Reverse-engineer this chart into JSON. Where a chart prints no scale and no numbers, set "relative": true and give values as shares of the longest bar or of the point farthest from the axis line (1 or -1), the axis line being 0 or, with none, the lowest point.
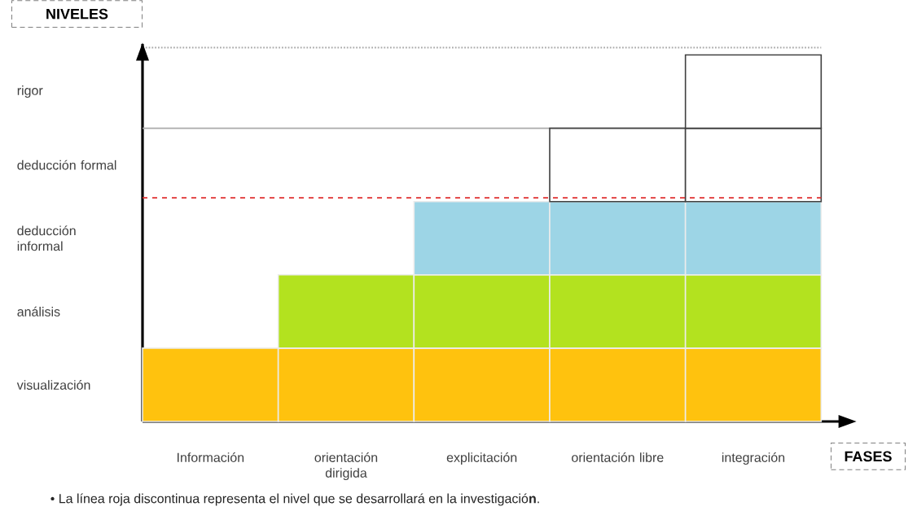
{
  "chart_data": {
    "type": "bar",
    "stacked": true,
    "relative": true,
    "grid": false,
    "xlabel": "FASES",
    "ylabel": "NIVELES",
    "categories": [
      "Información",
      "orientación dirigida",
      "explicitación",
      "orientación libre",
      "integración"
    ],
    "series": [
      {
        "color": "#ffc20e",
        "values": [
          0.2,
          0.2,
          0.2,
          0.2,
          0.2
        ]
      },
      {
        "color": "#b3e21f",
        "values": [
          null,
          0.2,
          0.2,
          0.2,
          0.2
        ]
      },
      {
        "color": "#9dd5e6",
        "values": [
          null,
          null,
          0.2,
          0.2,
          0.2
        ]
      },
      {
        "color": "#ffffff",
        "values": [
          null,
          null,
          null,
          0.2,
          0.2
        ]
      },
      {
        "color": "#ffffff",
        "values": [
          null,
          null,
          null,
          null,
          0.2
        ]
      }
    ],
    "ref_lines": [
      {
        "axis": "y",
        "value": 1.02,
        "color": "#aaaaaa",
        "line_style": "dotted"
      },
      {
        "axis": "y",
        "value": 0.8,
        "color": "#aaaaaa",
        "line_style": "solid"
      },
      {
        "axis": "y",
        "value": 0.61,
        "color": "#e03030",
        "line_style": "dashed"
      }
    ],
    "annotations": [
      "visualización",
      "análisis",
      "deducción informal",
      "deducción formal",
      "rigor",
      "• La línea roja discontinua representa el nivel que se desarrollará en la investigació**n**."
    ]
  }
}
